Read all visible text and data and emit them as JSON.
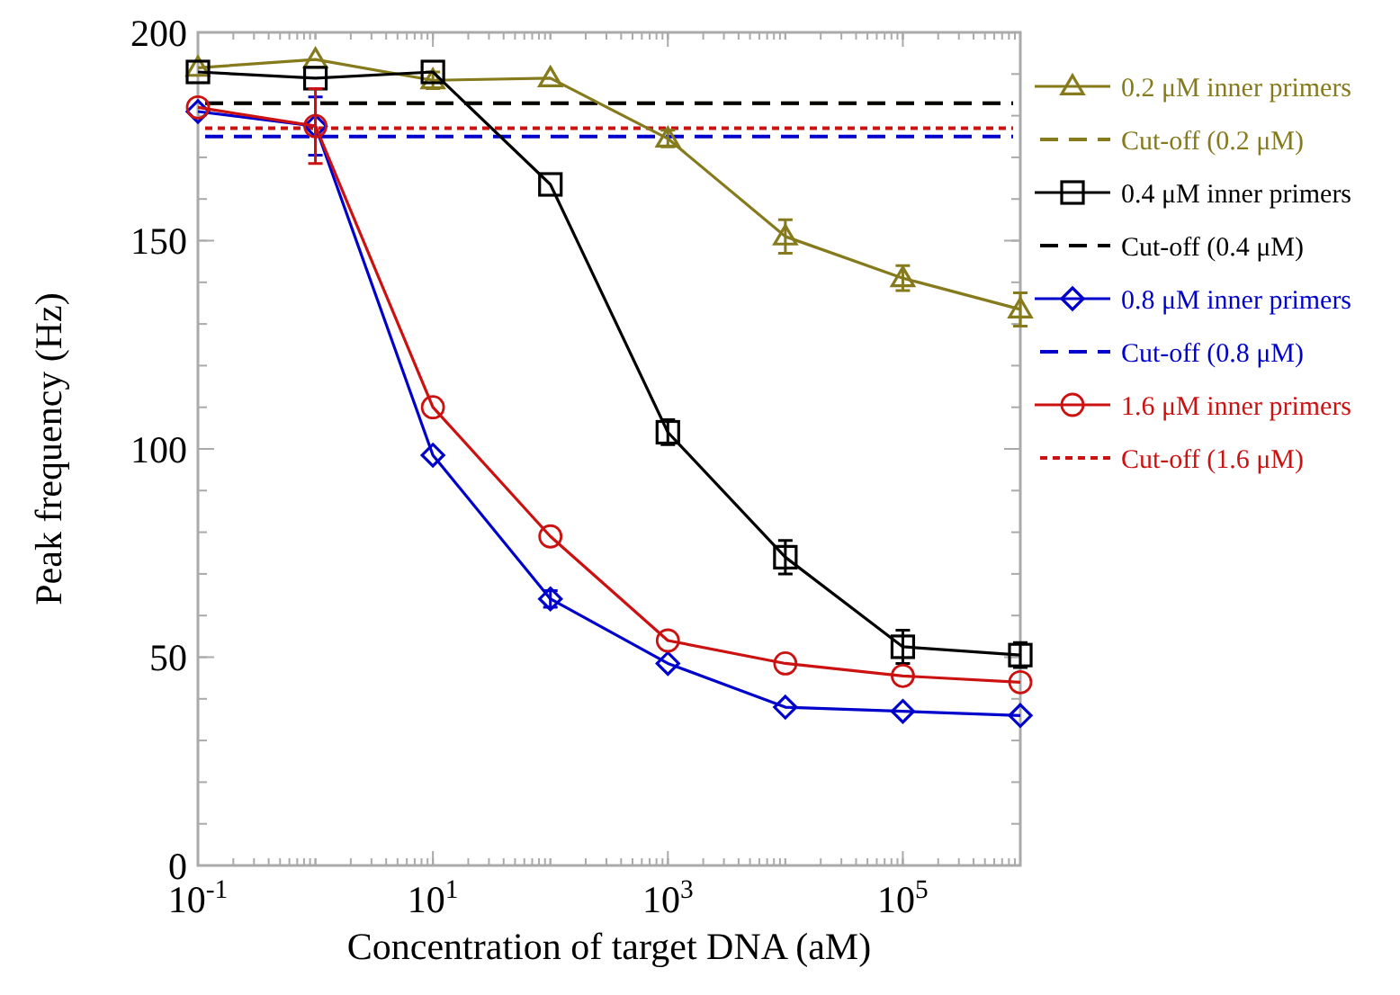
{
  "chart_data": {
    "type": "line",
    "xlabel": "Concentration of target DNA (aM)",
    "ylabel": "Peak frequency (Hz)",
    "log": "x",
    "x": [
      0.1,
      1,
      10,
      100,
      1000,
      10000,
      100000,
      1000000
    ],
    "xlim": [
      0.1,
      1000000
    ],
    "xticks": [
      {
        "value": 0.1,
        "label": "10$^{-1}$"
      },
      {
        "value": 10,
        "label": "10$^{1}$"
      },
      {
        "value": 1000,
        "label": "10$^{3}$"
      },
      {
        "value": 100000,
        "label": "10$^{5}$"
      }
    ],
    "ylim": [
      0,
      200
    ],
    "yticks": [
      0,
      50,
      100,
      150,
      200
    ],
    "grid": false,
    "legend": "right",
    "line_style": "solid",
    "series": [
      {
        "name": "0.2 μM inner primers",
        "color": "#857a1c",
        "marker": "triangle",
        "values": [
          191.5,
          193.5,
          188.5,
          189,
          174.5,
          151,
          141,
          133.5
        ],
        "errors": [
          null,
          null,
          2,
          null,
          2,
          4,
          3,
          4
        ]
      },
      {
        "name": "0.4 μM inner primers",
        "color": "#000000",
        "marker": "square",
        "values": [
          190.5,
          189,
          190.5,
          163.5,
          104,
          74,
          52.5,
          50.5
        ],
        "errors": [
          null,
          null,
          null,
          null,
          3,
          4,
          4,
          3
        ]
      },
      {
        "name": "0.8 μM inner primers",
        "color": "#0000cc",
        "marker": "diamond",
        "values": [
          181,
          177.5,
          98.5,
          64,
          48.5,
          38,
          37,
          36
        ],
        "errors": [
          null,
          7,
          null,
          2,
          null,
          null,
          null,
          null
        ]
      },
      {
        "name": "1.6 μM inner primers",
        "color": "#cc1111",
        "marker": "circle",
        "values": [
          182,
          177.5,
          110,
          79,
          54,
          48.5,
          45.5,
          44
        ],
        "errors": [
          null,
          9,
          null,
          null,
          null,
          null,
          null,
          null
        ]
      }
    ],
    "ref_lines": [
      {
        "axis": "y",
        "value": 183,
        "label": "Cut-off (0.2 μM)",
        "color": "#857a1c",
        "line_style": "dashed"
      },
      {
        "axis": "y",
        "value": 183,
        "label": "Cut-off (0.4 μM)",
        "color": "#000000",
        "line_style": "dashed"
      },
      {
        "axis": "y",
        "value": 175,
        "label": "Cut-off (0.8 μM)",
        "color": "#0000cc",
        "line_style": "dashed"
      },
      {
        "axis": "y",
        "value": 177,
        "label": "Cut-off (1.6 μM)",
        "color": "#cc1111",
        "line_style": "dotted"
      }
    ]
  }
}
